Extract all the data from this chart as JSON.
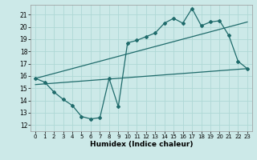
{
  "xlabel": "Humidex (Indice chaleur)",
  "bg_color": "#cce9e8",
  "line_color": "#1f6b6b",
  "grid_color": "#afd8d5",
  "spine_color": "#999999",
  "xlim": [
    -0.5,
    23.5
  ],
  "ylim": [
    11.5,
    21.8
  ],
  "yticks": [
    12,
    13,
    14,
    15,
    16,
    17,
    18,
    19,
    20,
    21
  ],
  "xticks": [
    0,
    1,
    2,
    3,
    4,
    5,
    6,
    7,
    8,
    9,
    10,
    11,
    12,
    13,
    14,
    15,
    16,
    17,
    18,
    19,
    20,
    21,
    22,
    23
  ],
  "curve1_x": [
    0,
    1,
    2,
    3,
    4,
    5,
    6,
    7,
    8,
    9,
    10,
    11,
    12,
    13,
    14,
    15,
    16,
    17,
    18,
    19,
    20,
    21,
    22,
    23
  ],
  "curve1_y": [
    15.8,
    15.5,
    14.7,
    14.1,
    13.6,
    12.7,
    12.5,
    12.6,
    15.8,
    13.5,
    18.7,
    18.9,
    19.2,
    19.5,
    20.3,
    20.7,
    20.3,
    21.5,
    20.1,
    20.4,
    20.5,
    19.3,
    17.2,
    16.6
  ],
  "line1_x": [
    0,
    23
  ],
  "line1_y": [
    15.3,
    16.6
  ],
  "line2_x": [
    0,
    23
  ],
  "line2_y": [
    15.8,
    20.4
  ]
}
